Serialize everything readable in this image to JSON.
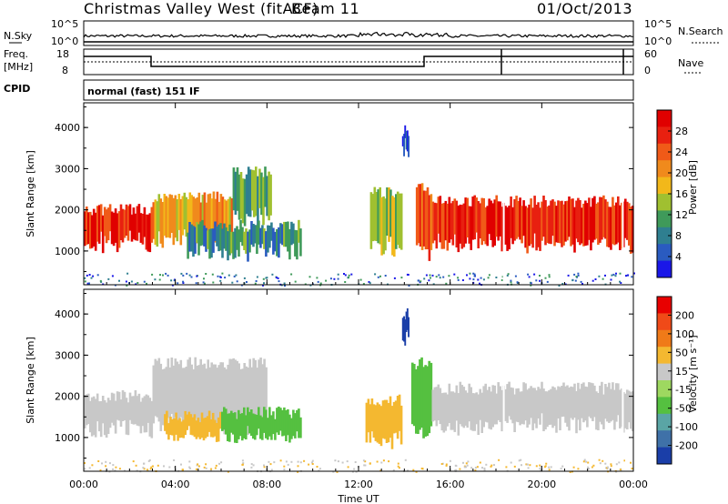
{
  "header": {
    "station": "Christmas Valley West (fitACF)",
    "beam": "Beam 11",
    "date": "01/Oct/2013"
  },
  "summary": {
    "nsky_label": "N.Sky",
    "nsearch_label": "N.Search",
    "nsky_ticks": [
      "10^5",
      "10^0"
    ],
    "nsearch_ticks": [
      "10^5",
      "10^0"
    ],
    "freq_label": "Freq.",
    "freq_unit": "[MHz]",
    "freq_ticks": [
      "18",
      "8"
    ],
    "nave_label": "Nave",
    "nave_ticks": [
      "60",
      "0"
    ],
    "cpid_label": "CPID",
    "cpid_value": "normal (fast) 151 IF"
  },
  "chart_data": [
    {
      "type": "heatmap",
      "name": "power",
      "ylabel": "Slant Range [km]",
      "y_ticks": [
        1000,
        2000,
        3000,
        4000
      ],
      "ylim": [
        180,
        4600
      ],
      "colorbar": {
        "label": "Power [dB]",
        "ticks": [
          "4",
          "8",
          "12",
          "16",
          "20",
          "24",
          "28"
        ],
        "colors": [
          "#1a17e8",
          "#2a5bc0",
          "#2f7f90",
          "#3f9a5a",
          "#a0c030",
          "#f2b81a",
          "#f08a1c",
          "#f05a18",
          "#e82010",
          "#e00000"
        ]
      },
      "regions": [
        {
          "start": 0.0,
          "end": 3.0,
          "low": 1200,
          "high": 2000,
          "level": 0.85
        },
        {
          "start": 3.0,
          "end": 6.5,
          "low": 1300,
          "high": 2300,
          "level": 0.6
        },
        {
          "start": 6.5,
          "end": 8.2,
          "low": 1800,
          "high": 2900,
          "level": 0.35
        },
        {
          "start": 4.5,
          "end": 9.5,
          "low": 1000,
          "high": 1600,
          "level": 0.3
        },
        {
          "start": 12.5,
          "end": 13.9,
          "low": 1100,
          "high": 2400,
          "level": 0.45
        },
        {
          "start": 13.9,
          "end": 14.2,
          "low": 3500,
          "high": 3900,
          "level": 0.2
        },
        {
          "start": 14.5,
          "end": 15.2,
          "low": 1000,
          "high": 2500,
          "level": 0.75
        },
        {
          "start": 15.2,
          "end": 24.0,
          "low": 1200,
          "high": 2200,
          "level": 0.85
        }
      ]
    },
    {
      "type": "heatmap",
      "name": "velocity",
      "ylabel": "Slant Range [km]",
      "y_ticks": [
        1000,
        2000,
        3000,
        4000
      ],
      "ylim": [
        180,
        4600
      ],
      "colorbar": {
        "label": "Velocity [m s⁻¹]",
        "ticks": [
          "200",
          "100",
          "50",
          "15",
          "-15",
          "-50",
          "-100",
          "-200"
        ],
        "colors": [
          "#1a3ea8",
          "#3f71a8",
          "#5aa5a5",
          "#55c040",
          "#9ed860",
          "#c8c8c8",
          "#f4b830",
          "#f07a18",
          "#f04a18",
          "#e80000"
        ]
      },
      "regions": [
        {
          "start": 0.0,
          "end": 3.0,
          "low": 1200,
          "high": 2000,
          "color": "#c8c8c8"
        },
        {
          "start": 3.0,
          "end": 8.0,
          "low": 1300,
          "high": 2800,
          "color": "#c8c8c8"
        },
        {
          "start": 3.5,
          "end": 6.0,
          "low": 1000,
          "high": 1500,
          "color": "#f4b830"
        },
        {
          "start": 6.0,
          "end": 9.5,
          "low": 1000,
          "high": 1600,
          "color": "#55c040"
        },
        {
          "start": 12.3,
          "end": 13.9,
          "low": 1000,
          "high": 1900,
          "color": "#f4b830"
        },
        {
          "start": 13.9,
          "end": 14.2,
          "low": 3500,
          "high": 4000,
          "color": "#1a3ea8"
        },
        {
          "start": 14.3,
          "end": 15.2,
          "low": 1200,
          "high": 2800,
          "color": "#55c040"
        },
        {
          "start": 15.2,
          "end": 24.0,
          "low": 1300,
          "high": 2200,
          "color": "#c8c8c8"
        }
      ]
    }
  ],
  "xaxis": {
    "ticks": [
      "00:00",
      "04:00",
      "08:00",
      "12:00",
      "16:00",
      "20:00",
      "00:00"
    ],
    "label": "Time UT",
    "range_hours": [
      0,
      24
    ]
  }
}
